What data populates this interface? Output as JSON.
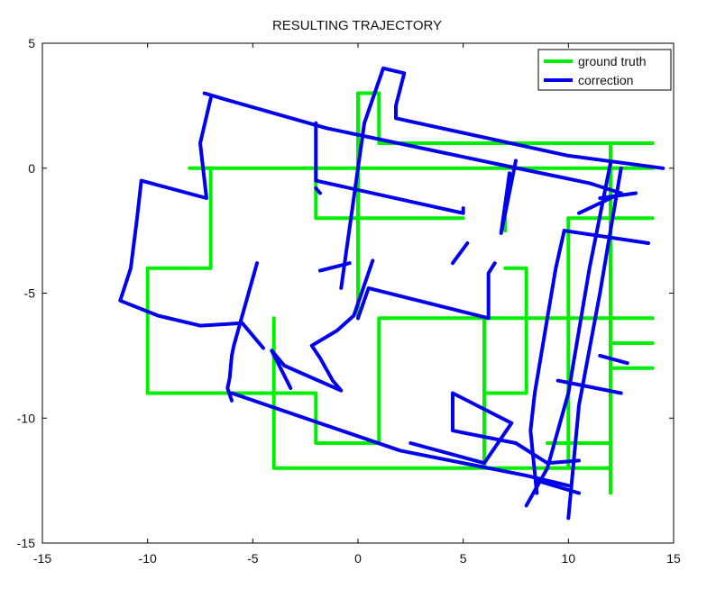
{
  "chart_data": {
    "type": "line",
    "title": "RESULTING TRAJECTORY",
    "xlabel": "",
    "ylabel": "",
    "xlim": [
      -15,
      15
    ],
    "ylim": [
      -15,
      5
    ],
    "xticks": [
      -15,
      -10,
      -5,
      0,
      5,
      10,
      15
    ],
    "yticks": [
      -15,
      -10,
      -5,
      0,
      5
    ],
    "x_tick_labels": [
      "-15",
      "-10",
      "-5",
      "0",
      "5",
      "10",
      "15"
    ],
    "y_tick_labels": [
      "-15",
      "-10",
      "-5",
      "0",
      "5"
    ],
    "grid": false,
    "legend_position": "top-right",
    "series": [
      {
        "name": "ground truth",
        "color": "#00ee00",
        "segments": [
          [
            [
              -8,
              0
            ],
            [
              14,
              0
            ]
          ],
          [
            [
              -7,
              0
            ],
            [
              -7,
              -4
            ],
            [
              -10,
              -4
            ],
            [
              -10,
              -9
            ],
            [
              -2,
              -9
            ],
            [
              -2,
              -11
            ],
            [
              1,
              -11
            ],
            [
              1,
              -6
            ],
            [
              14,
              -6
            ]
          ],
          [
            [
              -4,
              -6
            ],
            [
              -4,
              -12
            ],
            [
              12,
              -12
            ]
          ],
          [
            [
              0,
              3
            ],
            [
              1,
              3
            ]
          ],
          [
            [
              0,
              3
            ],
            [
              0,
              -6
            ]
          ],
          [
            [
              1,
              3
            ],
            [
              1,
              1
            ],
            [
              14,
              1
            ]
          ],
          [
            [
              -2,
              0
            ],
            [
              -2,
              -2
            ],
            [
              5,
              -2
            ]
          ],
          [
            [
              6,
              -6
            ],
            [
              6,
              -12
            ]
          ],
          [
            [
              7,
              -4
            ],
            [
              8,
              -4
            ],
            [
              8,
              -9
            ],
            [
              6,
              -9
            ]
          ],
          [
            [
              7,
              -2
            ],
            [
              7,
              -2.5
            ]
          ],
          [
            [
              10,
              -2
            ],
            [
              14,
              -2
            ]
          ],
          [
            [
              10,
              -2
            ],
            [
              10,
              -12
            ]
          ],
          [
            [
              12,
              1
            ],
            [
              12,
              -13
            ]
          ],
          [
            [
              12,
              -7
            ],
            [
              14,
              -7
            ]
          ],
          [
            [
              12,
              -8
            ],
            [
              14,
              -8
            ]
          ],
          [
            [
              9,
              -11
            ],
            [
              12,
              -11
            ]
          ]
        ]
      },
      {
        "name": "correction",
        "color": "#0000ee",
        "segments": [
          [
            [
              -7.3,
              3
            ],
            [
              -6.5,
              2.8
            ],
            [
              -1.5,
              1.6
            ],
            [
              7,
              0.1
            ],
            [
              11,
              -0.6
            ],
            [
              12.5,
              -1
            ]
          ],
          [
            [
              -7,
              2.8
            ],
            [
              -7.5,
              1
            ],
            [
              -7.2,
              -1.2
            ],
            [
              -10.3,
              -0.5
            ],
            [
              -10.5,
              -2
            ],
            [
              -10.8,
              -4
            ],
            [
              -11.3,
              -5.3
            ],
            [
              -9.5,
              -5.9
            ],
            [
              -7.5,
              -6.3
            ],
            [
              -5.5,
              -6.2
            ],
            [
              -4.5,
              -7.2
            ]
          ],
          [
            [
              -2,
              1.8
            ],
            [
              -2,
              0.5
            ],
            [
              -2,
              -0.5
            ],
            [
              5,
              -1.8
            ],
            [
              5,
              -1.6
            ]
          ],
          [
            [
              -0.8,
              -4.8
            ],
            [
              0.3,
              1.8
            ],
            [
              1.2,
              4
            ],
            [
              2.2,
              3.8
            ],
            [
              1.8,
              2.5
            ],
            [
              1.8,
              2
            ],
            [
              10,
              0.5
            ],
            [
              14.5,
              0
            ]
          ],
          [
            [
              12,
              0.2
            ],
            [
              11,
              -4
            ],
            [
              10,
              -9
            ],
            [
              9,
              -12
            ],
            [
              8,
              -13.5
            ]
          ],
          [
            [
              12.5,
              0
            ],
            [
              11.5,
              -5
            ],
            [
              10.5,
              -9.5
            ],
            [
              10,
              -14
            ]
          ],
          [
            [
              10.5,
              -1.8
            ],
            [
              12.5,
              -1
            ]
          ],
          [
            [
              13.2,
              -1
            ],
            [
              11.5,
              -1.2
            ]
          ],
          [
            [
              9.8,
              -2.5
            ],
            [
              13.8,
              -3
            ]
          ],
          [
            [
              9.8,
              -2.5
            ],
            [
              9.4,
              -4
            ],
            [
              8.8,
              -7
            ],
            [
              8.4,
              -9
            ],
            [
              8.2,
              -10.5
            ],
            [
              8.5,
              -13
            ]
          ],
          [
            [
              7.5,
              0.3
            ],
            [
              7,
              -1.8
            ],
            [
              6.8,
              -2.6
            ],
            [
              7.1,
              -0.8
            ],
            [
              7.2,
              -0.2
            ]
          ],
          [
            [
              6.5,
              -3.8
            ],
            [
              6.2,
              -4.2
            ],
            [
              6.2,
              -6
            ],
            [
              0.5,
              -4.8
            ],
            [
              0,
              -6
            ]
          ],
          [
            [
              0.7,
              -3.7
            ],
            [
              -0.2,
              -5.9
            ],
            [
              -1,
              -6.5
            ],
            [
              -2.2,
              -7.1
            ],
            [
              -1.8,
              -7.6
            ],
            [
              -1.2,
              -8.5
            ],
            [
              -0.8,
              -8.9
            ],
            [
              -3.5,
              -7.9
            ],
            [
              -3.8,
              -7.6
            ],
            [
              -4.1,
              -7.3
            ],
            [
              -3.2,
              -8.8
            ]
          ],
          [
            [
              -4.8,
              -3.8
            ],
            [
              -5.6,
              -6.2
            ],
            [
              -5.9,
              -7.1
            ],
            [
              -6,
              -7.5
            ],
            [
              -6.1,
              -8.4
            ],
            [
              -6.2,
              -8.8
            ],
            [
              -6,
              -9.3
            ]
          ],
          [
            [
              -6,
              -9
            ],
            [
              2,
              -11.3
            ],
            [
              8,
              -12.3
            ],
            [
              10,
              -12.7
            ]
          ],
          [
            [
              2.5,
              -11
            ],
            [
              6,
              -11.8
            ],
            [
              7.3,
              -10.2
            ],
            [
              4.5,
              -9
            ],
            [
              4.5,
              -10.5
            ],
            [
              7.5,
              -11
            ]
          ],
          [
            [
              7.5,
              -11
            ],
            [
              9,
              -11.8
            ],
            [
              10.5,
              -11.7
            ]
          ],
          [
            [
              8.5,
              -12.5
            ],
            [
              10.5,
              -13
            ]
          ],
          [
            [
              9.5,
              -8.5
            ],
            [
              12.5,
              -9
            ]
          ],
          [
            [
              11.5,
              -7.5
            ],
            [
              12.8,
              -7.8
            ]
          ],
          [
            [
              4.5,
              -3.8
            ],
            [
              5.2,
              -3
            ]
          ],
          [
            [
              -1.8,
              -4.1
            ],
            [
              -0.4,
              -3.8
            ]
          ],
          [
            [
              -2,
              -0.8
            ],
            [
              -1.8,
              -1
            ]
          ]
        ]
      }
    ]
  }
}
